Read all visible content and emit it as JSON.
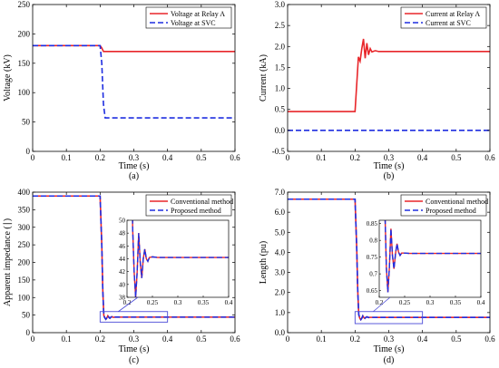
{
  "chart_data": [
    {
      "type": "line",
      "caption": "(a)",
      "xlabel": "Time (s)",
      "ylabel": "Voltage (kV)",
      "xlim": [
        0,
        0.6
      ],
      "ylim": [
        0,
        250
      ],
      "xticks": [
        "0",
        "0.1",
        "0.2",
        "0.3",
        "0.4",
        "0.5",
        "0.6"
      ],
      "yticks": [
        "0",
        "50",
        "100",
        "150",
        "200",
        "250"
      ],
      "legend_position": "top-right",
      "grid": false,
      "series": [
        {
          "name": "Voltage at Relay A",
          "color": "#e8262a",
          "style": "solid",
          "x": [
            0,
            0.2,
            0.205,
            0.21,
            0.6
          ],
          "y": [
            180,
            180,
            176,
            170,
            170
          ]
        },
        {
          "name": "Voltage at SVC",
          "color": "#1f2ee0",
          "style": "dashed",
          "x": [
            0,
            0.2,
            0.205,
            0.21,
            0.215,
            0.6
          ],
          "y": [
            180,
            180,
            150,
            80,
            57,
            57
          ]
        }
      ]
    },
    {
      "type": "line",
      "caption": "(b)",
      "xlabel": "Time (s)",
      "ylabel": "Current (kA)",
      "xlim": [
        0,
        0.6
      ],
      "ylim": [
        -0.5,
        3.0
      ],
      "xticks": [
        "0",
        "0.1",
        "0.2",
        "0.3",
        "0.4",
        "0.5",
        "0.6"
      ],
      "yticks": [
        "-0.5",
        "0.0",
        "0.5",
        "1.0",
        "1.5",
        "2.0",
        "2.5",
        "3.0"
      ],
      "legend_position": "top-right",
      "grid": false,
      "series": [
        {
          "name": "Current at Relay A",
          "color": "#e8262a",
          "style": "solid",
          "x": [
            0,
            0.2,
            0.205,
            0.21,
            0.215,
            0.22,
            0.225,
            0.23,
            0.235,
            0.24,
            0.245,
            0.25,
            0.26,
            0.27,
            0.6
          ],
          "y": [
            0.45,
            0.45,
            1.1,
            1.75,
            1.65,
            1.95,
            2.18,
            1.72,
            2.08,
            1.8,
            1.95,
            1.87,
            1.9,
            1.88,
            1.88
          ]
        },
        {
          "name": "Current at SVC",
          "color": "#1f2ee0",
          "style": "dashed",
          "x": [
            0,
            0.6
          ],
          "y": [
            0,
            0
          ]
        }
      ]
    },
    {
      "type": "line",
      "caption": "(c)",
      "xlabel": "Time (s)",
      "ylabel": "Apparent impedance (∣)",
      "xlim": [
        0,
        0.6
      ],
      "ylim": [
        0,
        400
      ],
      "xticks": [
        "0",
        "0.1",
        "0.2",
        "0.3",
        "0.4",
        "0.5",
        "0.6"
      ],
      "yticks": [
        "0",
        "50",
        "100",
        "150",
        "200",
        "250",
        "300",
        "350",
        "400"
      ],
      "legend_position": "top-right",
      "grid": false,
      "series": [
        {
          "name": "Conventional method",
          "color": "#e8262a",
          "style": "solid",
          "x": [
            0,
            0.2,
            0.205,
            0.208,
            0.211,
            0.214,
            0.217,
            0.22,
            0.223,
            0.226,
            0.229,
            0.232,
            0.235,
            0.238,
            0.241,
            0.244,
            0.25,
            0.26,
            0.6
          ],
          "y": [
            389,
            389,
            250,
            120,
            49,
            42,
            38,
            42,
            48,
            43.5,
            41,
            44,
            45.5,
            44,
            43.6,
            44.2,
            44.3,
            44.2,
            44.2
          ]
        },
        {
          "name": "Proposed method",
          "color": "#1f2ee0",
          "style": "dashed",
          "x": [
            0,
            0.2,
            0.205,
            0.208,
            0.211,
            0.214,
            0.217,
            0.22,
            0.223,
            0.226,
            0.229,
            0.232,
            0.235,
            0.238,
            0.241,
            0.244,
            0.25,
            0.26,
            0.6
          ],
          "y": [
            389,
            389,
            250,
            120,
            49,
            42,
            38,
            42,
            48,
            43.5,
            41,
            44,
            45.5,
            44,
            43.6,
            44.2,
            44.3,
            44.2,
            44.2
          ]
        }
      ],
      "inset": {
        "xlim": [
          0.2,
          0.4
        ],
        "ylim": [
          38,
          50
        ],
        "xticks": [
          "0.2",
          "0.25",
          "0.3",
          "0.35",
          "0.4"
        ],
        "yticks": [
          "38",
          "40",
          "42",
          "44",
          "46",
          "48",
          "50"
        ],
        "zoom_box": {
          "x": [
            0.2,
            0.4
          ],
          "y": [
            30,
            60
          ]
        }
      }
    },
    {
      "type": "line",
      "caption": "(d)",
      "xlabel": "Time (s)",
      "ylabel": "Length (pu)",
      "xlim": [
        0,
        0.6
      ],
      "ylim": [
        0,
        7.0
      ],
      "xticks": [
        "0",
        "0.1",
        "0.2",
        "0.3",
        "0.4",
        "0.5",
        "0.6"
      ],
      "yticks": [
        "0.0",
        "1.0",
        "2.0",
        "3.0",
        "4.0",
        "5.0",
        "6.0",
        "7.0"
      ],
      "legend_position": "top-right",
      "grid": false,
      "series": [
        {
          "name": "Conventional method",
          "color": "#e8262a",
          "style": "solid",
          "x": [
            0,
            0.2,
            0.205,
            0.208,
            0.211,
            0.214,
            0.217,
            0.22,
            0.223,
            0.226,
            0.229,
            0.232,
            0.235,
            0.238,
            0.241,
            0.244,
            0.25,
            0.26,
            0.6
          ],
          "y": [
            6.65,
            6.65,
            4.2,
            2.1,
            0.9,
            0.72,
            0.645,
            0.72,
            0.835,
            0.755,
            0.715,
            0.76,
            0.79,
            0.765,
            0.755,
            0.762,
            0.762,
            0.761,
            0.761
          ]
        },
        {
          "name": "Proposed method",
          "color": "#1f2ee0",
          "style": "dashed",
          "x": [
            0,
            0.2,
            0.205,
            0.208,
            0.211,
            0.214,
            0.217,
            0.22,
            0.223,
            0.226,
            0.229,
            0.232,
            0.235,
            0.238,
            0.241,
            0.244,
            0.25,
            0.26,
            0.6
          ],
          "y": [
            6.65,
            6.65,
            4.2,
            2.1,
            0.9,
            0.72,
            0.645,
            0.72,
            0.835,
            0.755,
            0.715,
            0.76,
            0.79,
            0.765,
            0.755,
            0.762,
            0.762,
            0.761,
            0.761
          ]
        }
      ],
      "inset": {
        "xlim": [
          0.2,
          0.4
        ],
        "ylim": [
          0.63,
          0.86
        ],
        "xticks": [
          "0.2",
          "0.25",
          "0.3",
          "0.35",
          "0.4"
        ],
        "yticks": [
          "0.65",
          "0.7",
          "0.75",
          "0.8",
          "0.85"
        ],
        "zoom_box": {
          "x": [
            0.2,
            0.4
          ],
          "y": [
            0.45,
            1.05
          ]
        }
      }
    }
  ]
}
